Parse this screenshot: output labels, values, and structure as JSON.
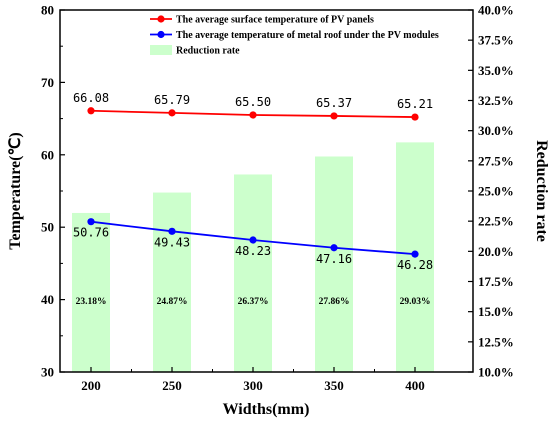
{
  "chart_data": {
    "type": "bar+line",
    "categories": [
      "200",
      "250",
      "300",
      "350",
      "400"
    ],
    "xlabel": "Widths(mm)",
    "ylabel_left": "Temperature(℃)",
    "ylabel_right": "Reduction rate",
    "ylim_left": [
      30,
      80
    ],
    "ylim_right": [
      10,
      40
    ],
    "left_ticks": [
      "30",
      "40",
      "50",
      "60",
      "70",
      "80"
    ],
    "right_ticks": [
      "10.0%",
      "12.5%",
      "15.0%",
      "17.5%",
      "20.0%",
      "22.5%",
      "25.0%",
      "27.5%",
      "30.0%",
      "32.5%",
      "35.0%",
      "37.5%",
      "40.0%"
    ],
    "series": [
      {
        "name": "The average surface temperature of PV panels",
        "kind": "line",
        "axis": "left",
        "color": "#ff0000",
        "values": [
          66.08,
          65.79,
          65.5,
          65.37,
          65.21
        ],
        "labels": [
          "66.08",
          "65.79",
          "65.50",
          "65.37",
          "65.21"
        ]
      },
      {
        "name": "The average temperature of metal roof under the PV modules",
        "kind": "line",
        "axis": "left",
        "color": "#0000ff",
        "values": [
          50.76,
          49.43,
          48.23,
          47.16,
          46.28
        ],
        "labels": [
          "50.76",
          "49.43",
          "48.23",
          "47.16",
          "46.28"
        ]
      },
      {
        "name": "Reduction rate",
        "kind": "bar",
        "axis": "right",
        "color": "#ccffcc",
        "values": [
          23.18,
          24.87,
          26.37,
          27.86,
          29.03
        ],
        "labels": [
          "23.18%",
          "24.87%",
          "26.37%",
          "27.86%",
          "29.03%"
        ]
      }
    ],
    "legend_position": "top-left"
  }
}
